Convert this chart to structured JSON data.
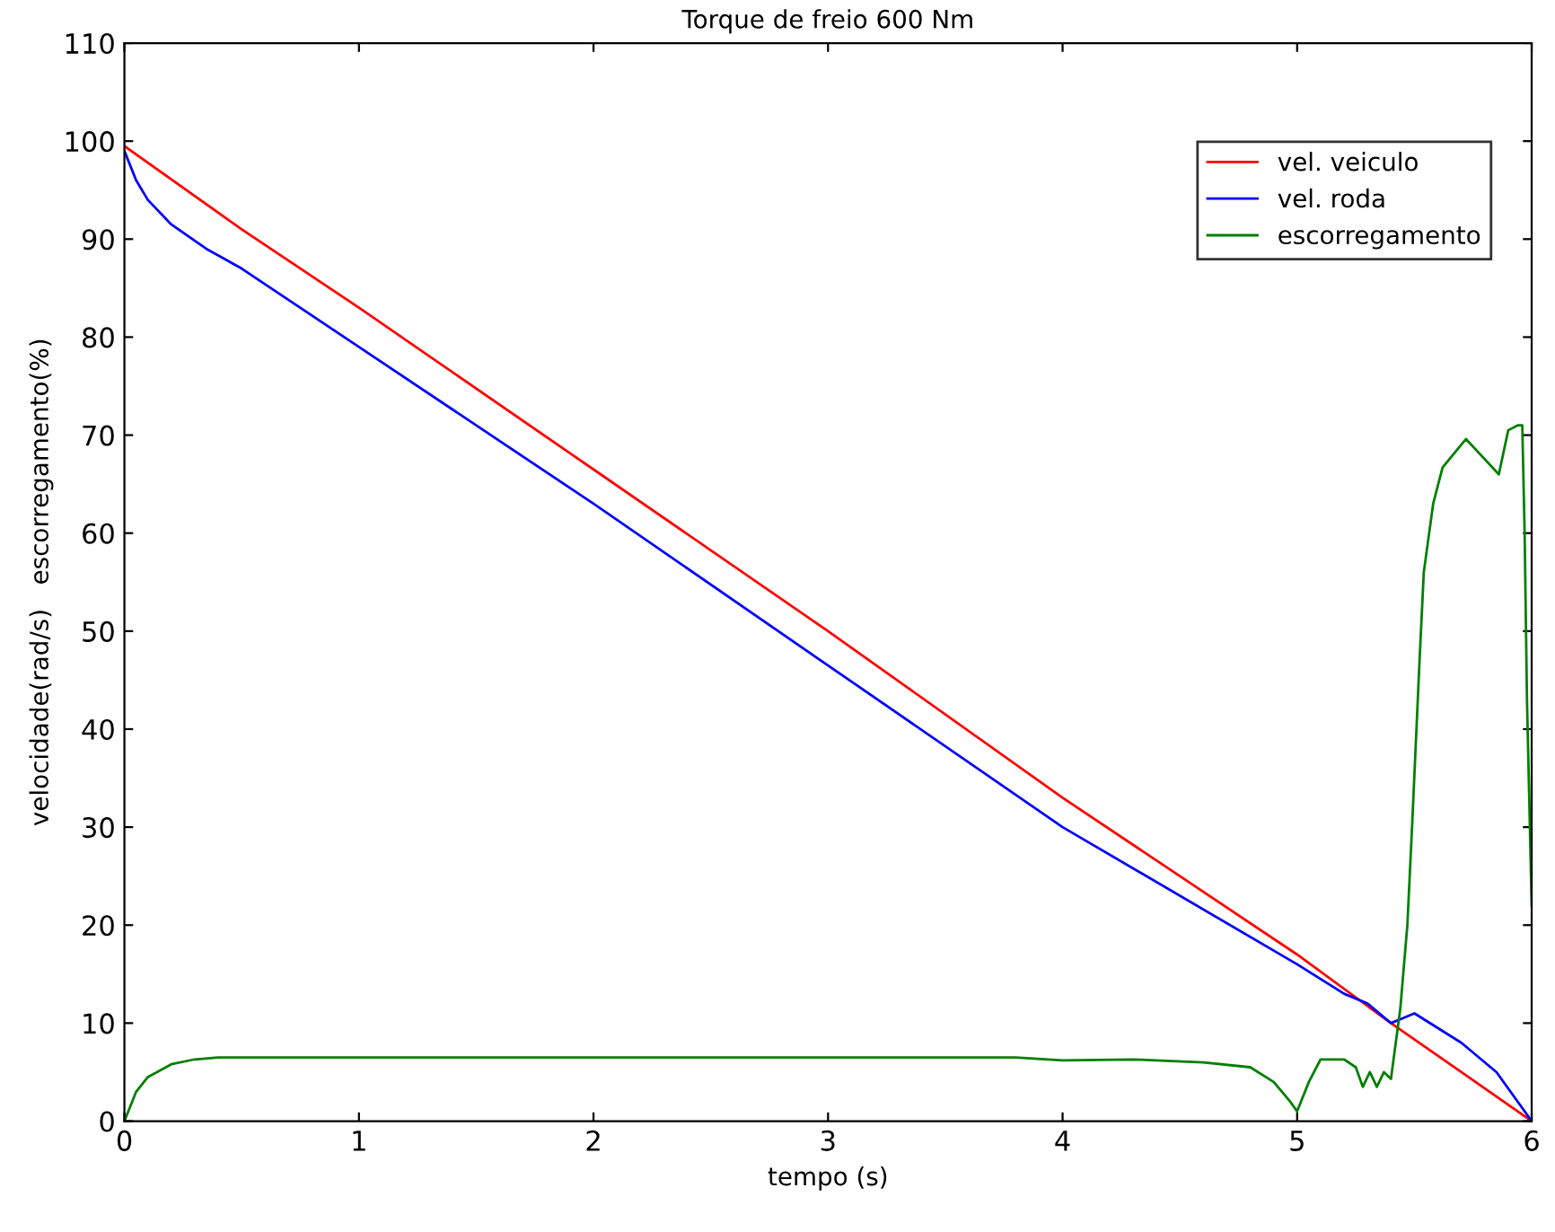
{
  "chart_data": {
    "type": "line",
    "title": "Torque de freio 600 Nm",
    "xlabel": "tempo (s)",
    "ylabel": "velocidade(rad/s)   escorregamento(%)",
    "xlim": [
      0,
      6
    ],
    "ylim": [
      0,
      110
    ],
    "xticks": [
      0,
      1,
      2,
      3,
      4,
      5,
      6
    ],
    "yticks": [
      0,
      10,
      20,
      30,
      40,
      50,
      60,
      70,
      80,
      90,
      100,
      110
    ],
    "grid": false,
    "legend": "top right",
    "series": [
      {
        "name": "vel. veiculo",
        "color": "#ff0000",
        "x": [
          0,
          0.5,
          1,
          2,
          3,
          4,
          5,
          5.4,
          5.7,
          6
        ],
        "values": [
          99.5,
          91,
          83,
          66.5,
          50,
          33,
          17,
          10,
          5,
          0
        ]
      },
      {
        "name": "vel. roda",
        "color": "#0000ff",
        "x": [
          0,
          0.05,
          0.1,
          0.2,
          0.35,
          0.5,
          1,
          2,
          3,
          4,
          5,
          5.2,
          5.3,
          5.4,
          5.45,
          5.5,
          5.7,
          5.85,
          6
        ],
        "values": [
          99,
          96,
          94,
          91.5,
          89,
          87,
          79,
          63,
          46.5,
          30,
          16,
          13,
          12,
          10,
          10.5,
          11,
          8,
          5,
          0
        ]
      },
      {
        "name": "escorregamento",
        "color": "#008000",
        "x": [
          0,
          0.05,
          0.1,
          0.2,
          0.3,
          0.4,
          1,
          2,
          3,
          3.8,
          4.0,
          4.3,
          4.6,
          4.8,
          4.9,
          4.97,
          5.0,
          5.05,
          5.1,
          5.2,
          5.25,
          5.28,
          5.31,
          5.34,
          5.37,
          5.4,
          5.44,
          5.47,
          5.49,
          5.52,
          5.54,
          5.58,
          5.62,
          5.72,
          5.86,
          5.9,
          5.94,
          5.96,
          5.97,
          5.98,
          6.0
        ],
        "values": [
          0,
          3,
          4.5,
          5.8,
          6.3,
          6.5,
          6.5,
          6.5,
          6.5,
          6.5,
          6.2,
          6.3,
          6,
          5.5,
          4,
          2,
          1,
          4,
          6.3,
          6.3,
          5.5,
          3.5,
          5,
          3.5,
          5,
          4.3,
          11.5,
          20,
          30,
          46,
          56,
          63,
          66.7,
          69.6,
          66,
          70.5,
          71,
          71,
          60,
          43,
          22
        ]
      }
    ]
  }
}
